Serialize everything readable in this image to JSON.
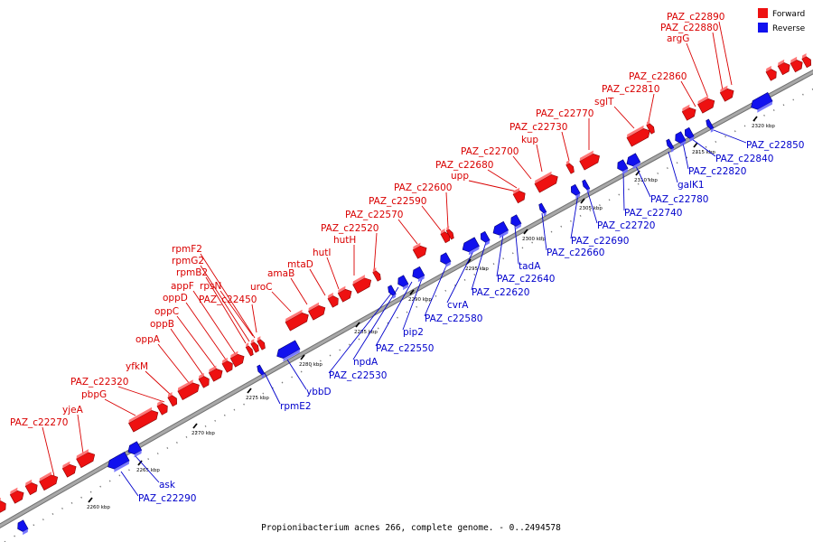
{
  "caption": "Propionibacterium acnes 266, complete genome. - 0..2494578",
  "legend": [
    {
      "label": "Forward",
      "color": "#ee1111"
    },
    {
      "label": "Reverse",
      "color": "#1111ee"
    }
  ],
  "colors": {
    "forward": "#ee1111",
    "reverse": "#1111ee",
    "forward_label": "#d90000",
    "reverse_label": "#0000cc",
    "backbone": "#a8a8a8"
  },
  "ticks": [
    "2260 kbp",
    "2265 kbp",
    "2270 kbp",
    "2275 kbp",
    "2280 kbp",
    "2285 kbp",
    "2290 kbp",
    "2295 kbp",
    "2300 kbp",
    "2305 kbp",
    "2310 kbp",
    "2315 kbp",
    "2320 kbp"
  ],
  "forward_labels": [
    "PAZ_c22270",
    "yjeA",
    "pbpG",
    "PAZ_c22320",
    "yfkM",
    "oppA",
    "oppB",
    "oppC",
    "oppD",
    "appF",
    "rpmB2",
    "rpmG2",
    "rpmF2",
    "rpsN",
    "PAZ_c22450",
    "uroC",
    "amaB",
    "mtaD",
    "hutI",
    "hutH",
    "PAZ_c22520",
    "PAZ_c22570",
    "PAZ_c22590",
    "PAZ_c22600",
    "PAZ_c22680",
    "upp",
    "PAZ_c22700",
    "kup",
    "PAZ_c22730",
    "PAZ_c22770",
    "sglT",
    "PAZ_c22810",
    "PAZ_c22860",
    "argG",
    "PAZ_c22880",
    "PAZ_c22890"
  ],
  "reverse_labels": [
    "ask",
    "PAZ_c22290",
    "rpmE2",
    "ybbD",
    "PAZ_c22530",
    "npdA",
    "PAZ_c22550",
    "pip2",
    "PAZ_c22580",
    "cvrA",
    "PAZ_c22620",
    "PAZ_c22640",
    "tadA",
    "PAZ_c22660",
    "PAZ_c22690",
    "PAZ_c22720",
    "PAZ_c22740",
    "PAZ_c22780",
    "galK1",
    "PAZ_c22820",
    "PAZ_c22840",
    "PAZ_c22850"
  ]
}
